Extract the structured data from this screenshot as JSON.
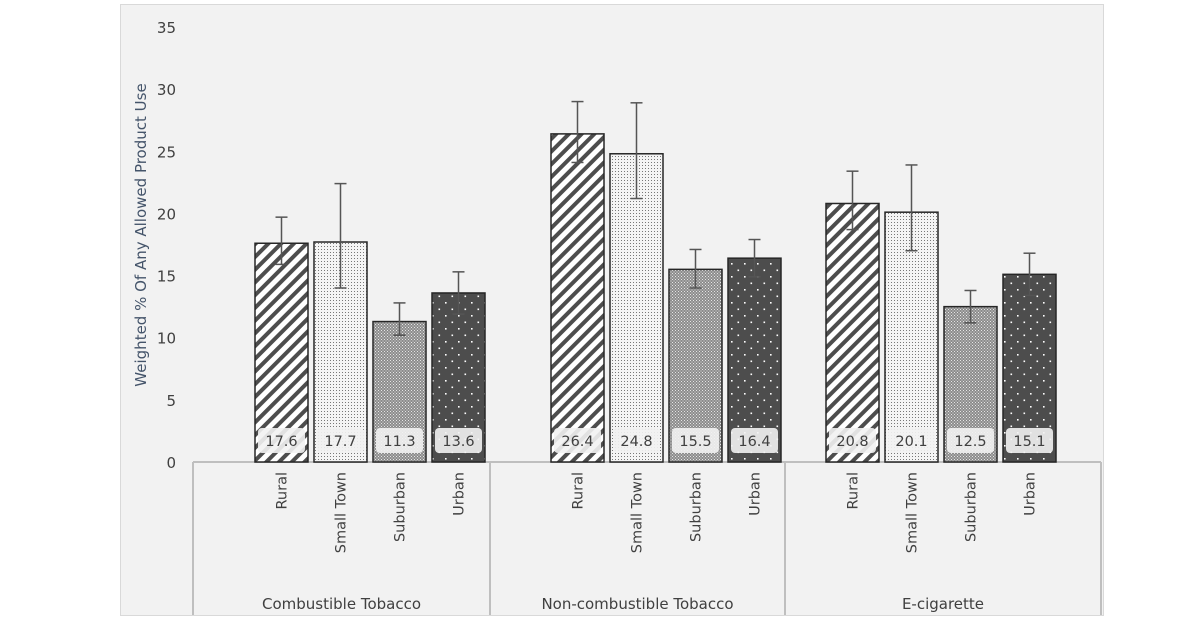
{
  "chart_data": {
    "type": "bar",
    "title": "",
    "xlabel": "",
    "ylabel": "Weighted % Of Any Allowed Product Use",
    "ylim": [
      0,
      35
    ],
    "yticks": [
      0,
      5,
      10,
      15,
      20,
      25,
      30,
      35
    ],
    "grid": false,
    "legend": "none",
    "groups": [
      "Combustible Tobacco",
      "Non-combustible Tobacco",
      "E-cigarette"
    ],
    "categories": [
      "Rural",
      "Small Town",
      "Suburban",
      "Urban"
    ],
    "series": [
      {
        "group": "Combustible Tobacco",
        "values": [
          17.6,
          17.7,
          11.3,
          13.6
        ],
        "labels": [
          "17.6",
          "17.7",
          "11.3",
          "13.6"
        ],
        "error_low": [
          15.9,
          14.0,
          10.2,
          11.9
        ],
        "error_high": [
          19.7,
          22.4,
          12.8,
          15.3
        ]
      },
      {
        "group": "Non-combustible Tobacco",
        "values": [
          26.4,
          24.8,
          15.5,
          16.4
        ],
        "labels": [
          "26.4",
          "24.8",
          "15.5",
          "16.4"
        ],
        "error_low": [
          24.1,
          21.2,
          14.0,
          14.9
        ],
        "error_high": [
          29.0,
          28.9,
          17.1,
          17.9
        ]
      },
      {
        "group": "E-cigarette",
        "values": [
          20.8,
          20.1,
          12.5,
          15.1
        ],
        "labels": [
          "20.8",
          "20.1",
          "12.5",
          "15.1"
        ],
        "error_low": [
          18.7,
          17.0,
          11.2,
          13.4
        ],
        "error_high": [
          23.4,
          23.9,
          13.8,
          16.8
        ]
      }
    ],
    "colors": {
      "text": "#404040",
      "ylabel": "#44546a",
      "axis": "#bfbfbf",
      "bar_edge": "#262626",
      "dark_fill": "#4d4d4d",
      "background": "#f2f2f2"
    }
  }
}
